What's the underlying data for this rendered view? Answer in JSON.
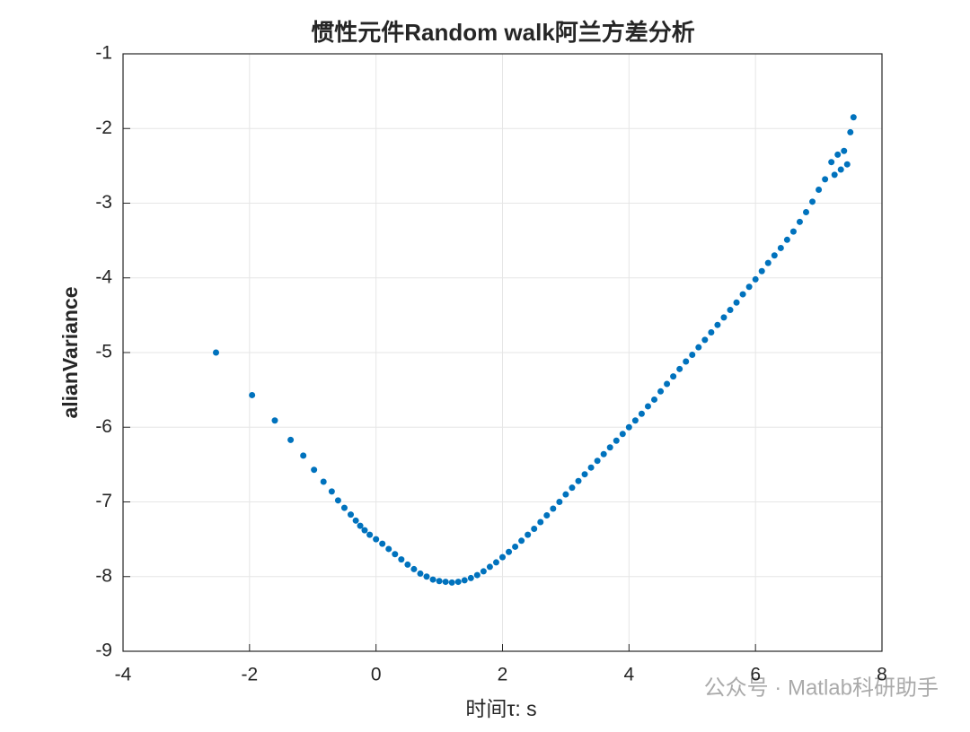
{
  "chart_data": {
    "type": "scatter",
    "title": "惯性元件Random walk阿兰方差分析",
    "x_label": "时间τ: s",
    "y_label": "alianVariance",
    "watermark": "公众号 · Matlab科研助手",
    "series": [
      {
        "name": "alianVariance",
        "color": "#0072bd",
        "x": [
          -2.53,
          -1.96,
          -1.6,
          -1.35,
          -1.15,
          -0.98,
          -0.83,
          -0.7,
          -0.6,
          -0.5,
          -0.4,
          -0.32,
          -0.25,
          -0.18,
          -0.1,
          0.0,
          0.1,
          0.2,
          0.3,
          0.4,
          0.5,
          0.6,
          0.7,
          0.8,
          0.9,
          1.0,
          1.1,
          1.2,
          1.3,
          1.4,
          1.5,
          1.6,
          1.7,
          1.8,
          1.9,
          2.0,
          2.1,
          2.2,
          2.3,
          2.4,
          2.5,
          2.6,
          2.7,
          2.8,
          2.9,
          3.0,
          3.1,
          3.2,
          3.3,
          3.4,
          3.5,
          3.6,
          3.7,
          3.8,
          3.9,
          4.0,
          4.1,
          4.2,
          4.3,
          4.4,
          4.5,
          4.6,
          4.7,
          4.8,
          4.9,
          5.0,
          5.1,
          5.2,
          5.3,
          5.4,
          5.5,
          5.6,
          5.7,
          5.8,
          5.9,
          6.0,
          6.1,
          6.2,
          6.3,
          6.4,
          6.5,
          6.6,
          6.7,
          6.8,
          6.9,
          7.0,
          7.1,
          7.2,
          7.25,
          7.3,
          7.35,
          7.4,
          7.45,
          7.5,
          7.55
        ],
        "values": [
          -5.0,
          -5.57,
          -5.91,
          -6.17,
          -6.38,
          -6.57,
          -6.73,
          -6.86,
          -6.98,
          -7.08,
          -7.17,
          -7.25,
          -7.32,
          -7.38,
          -7.44,
          -7.5,
          -7.56,
          -7.63,
          -7.7,
          -7.77,
          -7.84,
          -7.9,
          -7.96,
          -8.0,
          -8.04,
          -8.06,
          -8.07,
          -8.08,
          -8.07,
          -8.05,
          -8.02,
          -7.98,
          -7.93,
          -7.87,
          -7.81,
          -7.74,
          -7.67,
          -7.6,
          -7.52,
          -7.44,
          -7.36,
          -7.27,
          -7.18,
          -7.09,
          -7.0,
          -6.9,
          -6.81,
          -6.72,
          -6.63,
          -6.54,
          -6.45,
          -6.36,
          -6.27,
          -6.18,
          -6.09,
          -6.0,
          -5.91,
          -5.82,
          -5.72,
          -5.63,
          -5.52,
          -5.42,
          -5.32,
          -5.22,
          -5.12,
          -5.03,
          -4.93,
          -4.83,
          -4.73,
          -4.63,
          -4.53,
          -4.43,
          -4.33,
          -4.22,
          -4.12,
          -4.02,
          -3.91,
          -3.8,
          -3.7,
          -3.6,
          -3.49,
          -3.38,
          -3.25,
          -3.12,
          -2.98,
          -2.82,
          -2.68,
          -2.45,
          -2.62,
          -2.35,
          -2.55,
          -2.3,
          -2.48,
          -2.05,
          -1.85
        ]
      }
    ],
    "xlim": [
      -4,
      8
    ],
    "xticks": [
      -4,
      -2,
      0,
      2,
      4,
      6,
      8
    ],
    "ylim": [
      -9,
      -1
    ],
    "yticks": [
      -9,
      -8,
      -7,
      -6,
      -5,
      -4,
      -3,
      -2,
      -1
    ],
    "grid": true
  }
}
